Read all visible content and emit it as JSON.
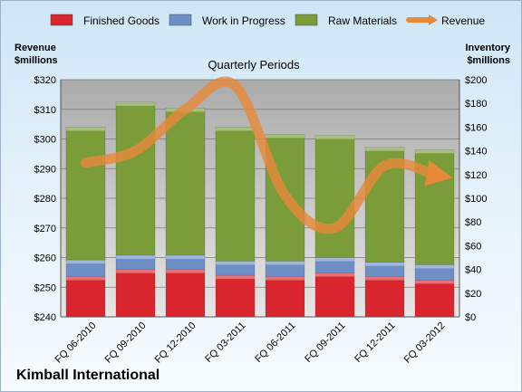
{
  "company": "Kimball International",
  "chart_data": {
    "type": "bar",
    "subtitle": "Quarterly Periods",
    "left_axis_label": "Revenue\n$millions",
    "right_axis_label": "Inventory\n$millions",
    "categories": [
      "FQ 06-2010",
      "FQ 09-2010",
      "FQ 12-2010",
      "FQ 03-2011",
      "FQ 06-2011",
      "FQ 09-2011",
      "FQ 12-2011",
      "FQ 03-2012"
    ],
    "stacked": true,
    "series": [
      {
        "name": "Finished Goods",
        "axis": "right",
        "color": "#d9262e",
        "values": [
          34,
          40,
          40,
          35,
          34,
          37,
          34,
          31
        ]
      },
      {
        "name": "Work in Progress",
        "axis": "right",
        "color": "#6e8fc6",
        "values": [
          14,
          12,
          12,
          12,
          13,
          13,
          12,
          13
        ]
      },
      {
        "name": "Raw Materials",
        "axis": "right",
        "color": "#7a9d3a",
        "values": [
          112,
          129,
          124,
          113,
          107,
          103,
          97,
          97
        ]
      },
      {
        "name": "Revenue",
        "type": "line",
        "axis": "left",
        "color": "#e8893a",
        "values": [
          292,
          296,
          310,
          318,
          281,
          270,
          291,
          288
        ]
      }
    ],
    "left_axis": {
      "min": 240,
      "max": 320,
      "step": 10,
      "ticks": [
        "$240",
        "$250",
        "$260",
        "$270",
        "$280",
        "$290",
        "$300",
        "$310",
        "$320"
      ]
    },
    "right_axis": {
      "min": 0,
      "max": 200,
      "step": 20,
      "ticks": [
        "$0",
        "$20",
        "$40",
        "$60",
        "$80",
        "$100",
        "$120",
        "$140",
        "$160",
        "$180",
        "$200"
      ]
    },
    "grid": true,
    "legend_position": "top"
  }
}
